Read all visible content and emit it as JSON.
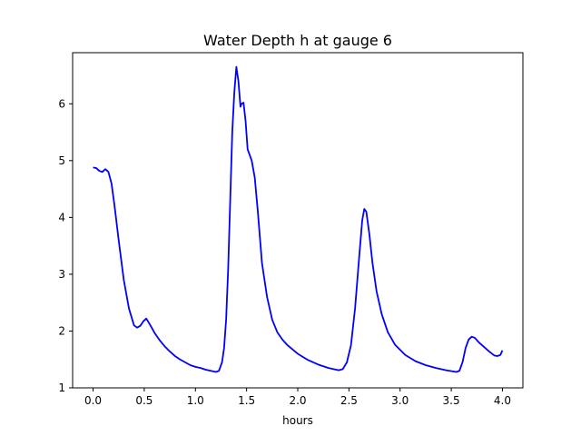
{
  "chart_data": {
    "type": "line",
    "title": "Water Depth h at gauge 6",
    "xlabel": "hours",
    "ylabel": "",
    "xlim": [
      -0.2,
      4.2
    ],
    "ylim": [
      1.0,
      6.9
    ],
    "xticks": [
      0.0,
      0.5,
      1.0,
      1.5,
      2.0,
      2.5,
      3.0,
      3.5,
      4.0
    ],
    "xtick_labels": [
      "0.0",
      "0.5",
      "1.0",
      "1.5",
      "2.0",
      "2.5",
      "3.0",
      "3.5",
      "4.0"
    ],
    "yticks": [
      1,
      2,
      3,
      4,
      5,
      6
    ],
    "ytick_labels": [
      "1",
      "2",
      "3",
      "4",
      "5",
      "6"
    ],
    "grid": false,
    "series": [
      {
        "color": "#0000ff",
        "x": [
          0.0,
          0.03,
          0.06,
          0.09,
          0.12,
          0.15,
          0.18,
          0.21,
          0.25,
          0.3,
          0.35,
          0.4,
          0.43,
          0.46,
          0.49,
          0.52,
          0.56,
          0.6,
          0.65,
          0.7,
          0.75,
          0.8,
          0.85,
          0.9,
          0.95,
          1.0,
          1.05,
          1.1,
          1.15,
          1.2,
          1.23,
          1.26,
          1.28,
          1.3,
          1.32,
          1.34,
          1.36,
          1.38,
          1.4,
          1.42,
          1.44,
          1.45,
          1.47,
          1.49,
          1.51,
          1.53,
          1.55,
          1.58,
          1.61,
          1.65,
          1.7,
          1.75,
          1.8,
          1.85,
          1.9,
          2.0,
          2.1,
          2.2,
          2.3,
          2.4,
          2.44,
          2.48,
          2.52,
          2.56,
          2.6,
          2.63,
          2.65,
          2.67,
          2.7,
          2.73,
          2.77,
          2.82,
          2.88,
          2.95,
          3.05,
          3.15,
          3.25,
          3.35,
          3.45,
          3.55,
          3.58,
          3.61,
          3.64,
          3.67,
          3.7,
          3.73,
          3.77,
          3.82,
          3.87,
          3.92,
          3.95,
          3.98,
          4.0
        ],
        "y": [
          4.88,
          4.87,
          4.82,
          4.8,
          4.85,
          4.8,
          4.6,
          4.2,
          3.6,
          2.9,
          2.4,
          2.1,
          2.06,
          2.09,
          2.17,
          2.22,
          2.1,
          1.97,
          1.84,
          1.73,
          1.64,
          1.56,
          1.5,
          1.45,
          1.4,
          1.37,
          1.35,
          1.32,
          1.3,
          1.28,
          1.3,
          1.45,
          1.7,
          2.2,
          3.1,
          4.3,
          5.5,
          6.2,
          6.65,
          6.4,
          5.95,
          6.0,
          6.02,
          5.7,
          5.2,
          5.1,
          5.0,
          4.7,
          4.1,
          3.2,
          2.6,
          2.2,
          1.98,
          1.85,
          1.75,
          1.6,
          1.49,
          1.41,
          1.35,
          1.31,
          1.33,
          1.45,
          1.75,
          2.4,
          3.3,
          3.95,
          4.15,
          4.1,
          3.7,
          3.2,
          2.7,
          2.3,
          1.98,
          1.76,
          1.58,
          1.47,
          1.4,
          1.35,
          1.31,
          1.28,
          1.3,
          1.45,
          1.7,
          1.85,
          1.9,
          1.88,
          1.8,
          1.72,
          1.64,
          1.57,
          1.56,
          1.58,
          1.66
        ]
      }
    ]
  }
}
